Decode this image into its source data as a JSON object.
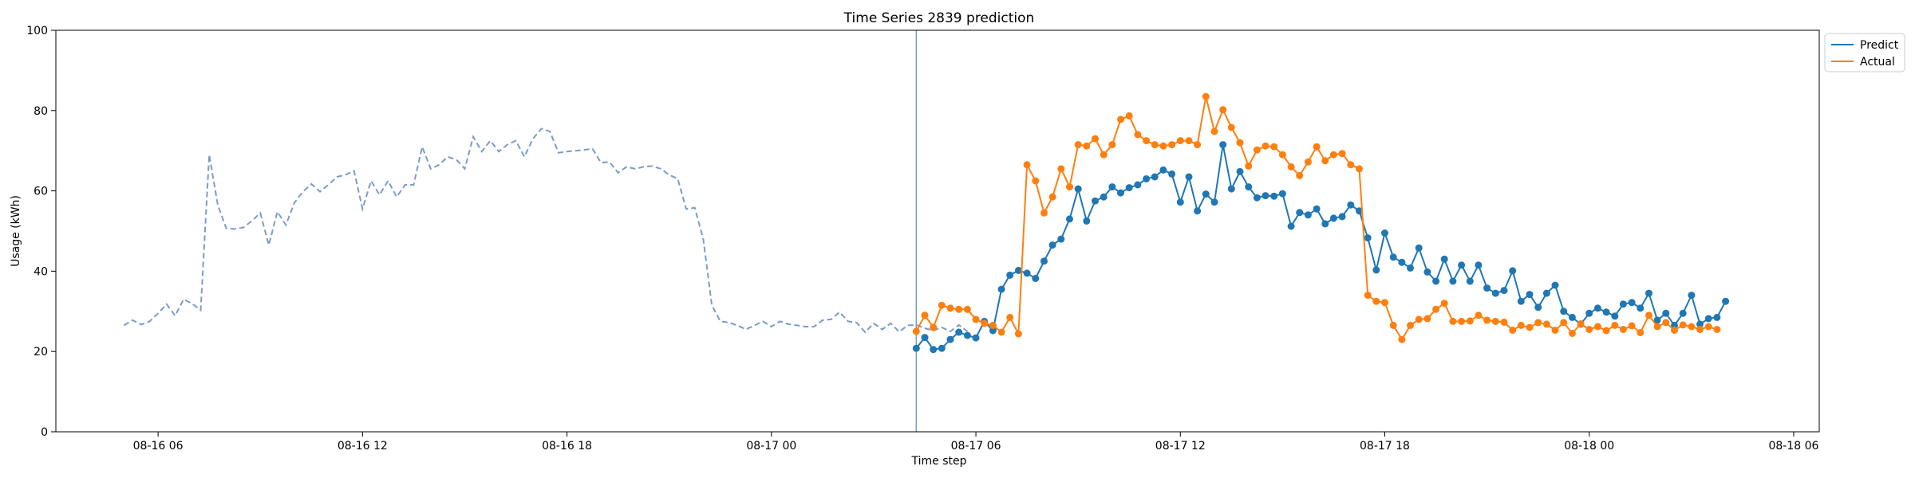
{
  "chart_data": {
    "type": "line",
    "title": "Time Series 2839 prediction",
    "xlabel": "Time step",
    "ylabel": "Usage (kWh)",
    "ylim": [
      0,
      100
    ],
    "yticks": [
      0,
      20,
      40,
      60,
      80,
      100
    ],
    "xlim": [
      "2023-08-16 03:00",
      "2023-08-18 06:45"
    ],
    "xticks": [
      {
        "t": "2023-08-16 06:00",
        "label": "08-16 06"
      },
      {
        "t": "2023-08-16 12:00",
        "label": "08-16 12"
      },
      {
        "t": "2023-08-16 18:00",
        "label": "08-16 18"
      },
      {
        "t": "2023-08-17 00:00",
        "label": "08-17 00"
      },
      {
        "t": "2023-08-17 06:00",
        "label": "08-17 06"
      },
      {
        "t": "2023-08-17 12:00",
        "label": "08-17 12"
      },
      {
        "t": "2023-08-17 18:00",
        "label": "08-17 18"
      },
      {
        "t": "2023-08-18 00:00",
        "label": "08-18 00"
      },
      {
        "t": "2023-08-18 06:00",
        "label": "08-18 06"
      }
    ],
    "split_time": "2023-08-17 04:15",
    "history": {
      "start": "2023-08-16 05:00",
      "step_minutes": 15,
      "values": [
        26.5,
        27.8,
        26.7,
        27.5,
        29.5,
        31.8,
        28.9,
        33.0,
        31.9,
        30.3,
        69.0,
        56.5,
        50.7,
        50.5,
        50.9,
        52.5,
        54.5,
        46.5,
        54.8,
        51.5,
        57.0,
        59.8,
        61.7,
        59.8,
        61.5,
        63.5,
        64.0,
        65.0,
        55.5,
        62.5,
        59.0,
        62.5,
        58.5,
        61.5,
        61.5,
        71.0,
        65.5,
        66.5,
        68.5,
        67.8,
        65.5,
        73.5,
        69.8,
        72.5,
        69.8,
        71.5,
        72.5,
        68.5,
        73.0,
        75.5,
        74.8,
        69.5,
        69.8,
        70.0,
        70.2,
        70.5,
        67.0,
        67.2,
        64.5,
        66.0,
        65.5,
        66.0,
        66.2,
        65.5,
        64.0,
        63.0,
        55.5,
        55.8,
        48.0,
        31.5,
        27.5,
        27.2,
        26.5,
        25.5,
        26.5,
        27.5,
        26.2,
        27.5,
        26.8,
        26.5,
        26.2,
        26.2,
        27.8,
        28.0,
        29.8,
        27.5,
        27.2,
        24.8,
        27.0,
        25.5,
        27.0,
        24.9,
        26.5,
        26.6,
        25.8,
        25.2,
        26.0,
        25.0,
        26.6,
        25.0
      ]
    },
    "series": [
      {
        "name": "Predict",
        "color": "#1f77b4",
        "start": "2023-08-17 04:15",
        "step_minutes": 15,
        "values": [
          20.8,
          23.5,
          20.5,
          20.8,
          23.0,
          24.8,
          24.0,
          23.4,
          27.5,
          25.2,
          35.5,
          39.0,
          40.2,
          39.5,
          38.2,
          42.5,
          46.5,
          48.0,
          53.0,
          60.5,
          52.5,
          57.5,
          58.5,
          61.0,
          59.5,
          60.8,
          61.5,
          63.0,
          63.5,
          65.2,
          64.2,
          57.2,
          63.5,
          55.0,
          59.2,
          57.2,
          71.5,
          60.5,
          64.8,
          61.0,
          58.3,
          58.8,
          58.7,
          59.3,
          51.2,
          54.6,
          54.0,
          55.5,
          51.8,
          53.2,
          53.6,
          56.5,
          55.0,
          48.3,
          40.3,
          49.5,
          43.5,
          42.2,
          40.8,
          45.8,
          39.8,
          37.5,
          43.0,
          37.5,
          41.5,
          37.5,
          41.5,
          35.8,
          34.5,
          35.2,
          40.1,
          32.5,
          34.2,
          31.0,
          34.5,
          36.5,
          30.0,
          28.5,
          26.8,
          29.5,
          30.8,
          29.8,
          28.8,
          31.8,
          32.2,
          30.8,
          34.5,
          27.8,
          29.5,
          26.5,
          29.5,
          34.0,
          26.8,
          28.2,
          28.5,
          32.5
        ]
      },
      {
        "name": "Actual",
        "color": "#ff7f0e",
        "start": "2023-08-17 04:15",
        "step_minutes": 15,
        "values": [
          25.0,
          29.0,
          26.0,
          31.5,
          30.8,
          30.5,
          30.5,
          28.0,
          27.0,
          26.5,
          24.8,
          28.5,
          24.4,
          66.5,
          62.5,
          54.5,
          58.5,
          65.5,
          61.0,
          71.5,
          71.2,
          73.0,
          69.0,
          71.5,
          77.8,
          78.7,
          74.0,
          72.5,
          71.5,
          71.2,
          71.5,
          72.5,
          72.5,
          71.5,
          83.5,
          74.8,
          80.2,
          75.8,
          72.0,
          66.2,
          70.2,
          71.2,
          71.0,
          69.0,
          66.0,
          63.8,
          67.2,
          71.0,
          67.5,
          69.0,
          69.3,
          66.5,
          65.5,
          34.0,
          32.5,
          32.2,
          26.5,
          23.0,
          26.5,
          28.0,
          28.2,
          30.5,
          32.0,
          27.5,
          27.5,
          27.6,
          29.0,
          27.8,
          27.5,
          27.3,
          25.3,
          26.5,
          26.0,
          27.2,
          26.8,
          25.3,
          27.2,
          24.5,
          26.9,
          25.5,
          26.2,
          25.2,
          26.5,
          25.5,
          26.4,
          24.7,
          29.0,
          26.2,
          27.2,
          25.3,
          26.6,
          26.2,
          25.5,
          26.2,
          25.5
        ]
      }
    ],
    "legend": {
      "position": "top-right, outside plot",
      "entries": [
        {
          "label": "Predict",
          "color": "#1f77b4"
        },
        {
          "label": "Actual",
          "color": "#ff7f0e"
        }
      ]
    },
    "history_style": {
      "color": "#7b9cc8",
      "dashed": true
    },
    "split_line_color": "#7d98c9",
    "grid": false
  }
}
